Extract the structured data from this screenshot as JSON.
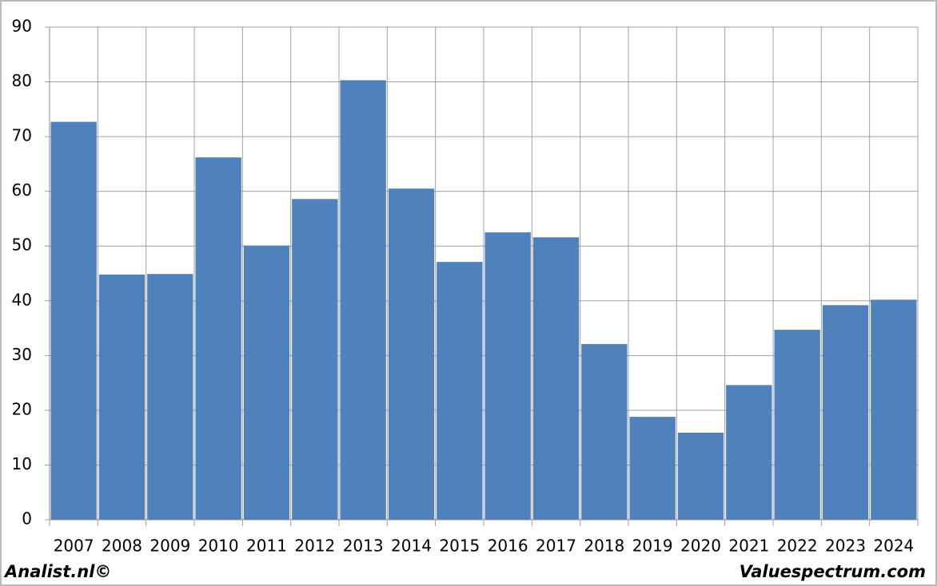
{
  "chart_data": {
    "type": "bar",
    "categories": [
      "2007",
      "2008",
      "2009",
      "2010",
      "2011",
      "2012",
      "2013",
      "2014",
      "2015",
      "2016",
      "2017",
      "2018",
      "2019",
      "2020",
      "2021",
      "2022",
      "2023",
      "2024"
    ],
    "values": [
      72.7,
      44.8,
      44.9,
      66.2,
      50.1,
      58.6,
      80.3,
      60.5,
      47.1,
      52.5,
      51.6,
      32.1,
      18.8,
      15.9,
      24.6,
      34.7,
      39.2,
      40.2
    ],
    "color": "#4f81bd",
    "ylim": [
      0,
      90
    ],
    "yticks": [
      0,
      10,
      20,
      30,
      40,
      50,
      60,
      70,
      80,
      90
    ],
    "grid": true,
    "footer_left": "Analist.nl©",
    "footer_right": "Valuespectrum.com"
  }
}
